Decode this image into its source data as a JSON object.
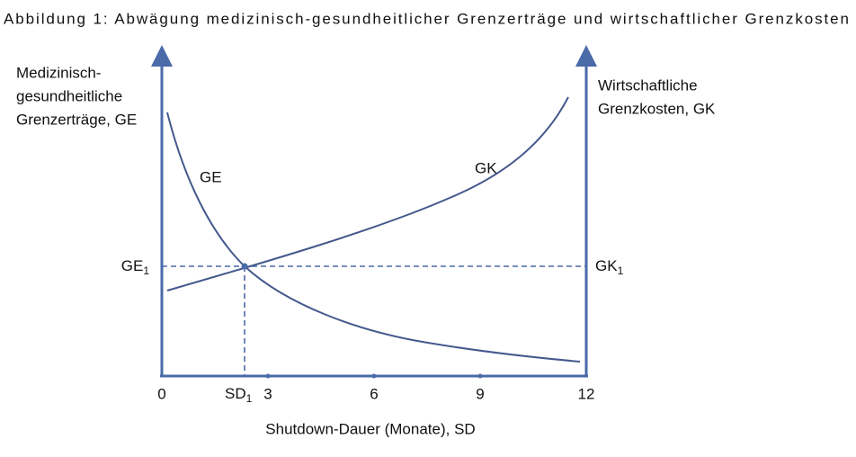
{
  "title": "Abbildung 1: Abwägung medizinisch-gesundheitlicher Grenzerträge und wirtschaftlicher Grenzkosten",
  "left_axis_label": [
    "Medizinisch-",
    "gesundheitliche",
    "Grenzerträge, GE"
  ],
  "right_axis_label": [
    "Wirtschaftliche",
    "Grenzkosten, GK"
  ],
  "x_axis_label": "Shutdown-Dauer (Monate), SD",
  "x_ticks": [
    0,
    3,
    6,
    9,
    12
  ],
  "curves": {
    "ge": "GE",
    "gk": "GK"
  },
  "equilibrium": {
    "ge": {
      "main": "GE",
      "sub": "1"
    },
    "gk": {
      "main": "GK",
      "sub": "1"
    },
    "sd": {
      "main": "SD",
      "sub": "1"
    }
  }
}
